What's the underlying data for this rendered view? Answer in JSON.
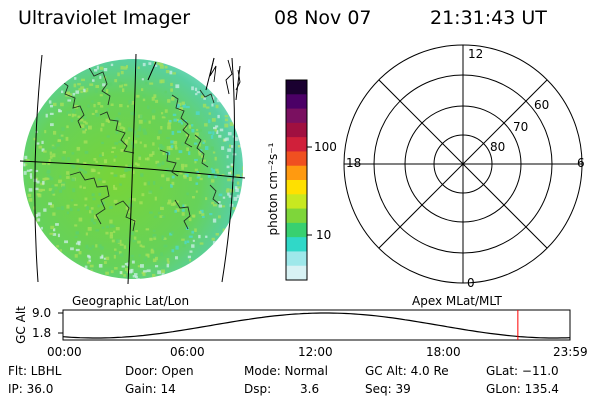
{
  "header": {
    "instrument": "Ultraviolet Imager",
    "date": "08 Nov 07",
    "time": "21:31:43 UT"
  },
  "geo_panel": {
    "label": "Geographic Lat/Lon",
    "colors": {
      "base": "#7ed63a",
      "speckle_a": "#5fd06a",
      "speckle_b": "#a8e05a",
      "cyan": "#4ed8d0",
      "pale": "#cdeee8"
    }
  },
  "colorbar": {
    "unit_label": "photon cm⁻²s⁻¹",
    "ticks": [
      "100",
      "10"
    ],
    "scale": "log",
    "colors": [
      "#1a0030",
      "#4b0066",
      "#7a1060",
      "#a01040",
      "#d0203a",
      "#f05020",
      "#ff9a10",
      "#ffe000",
      "#c8e820",
      "#7ed63a",
      "#38d070",
      "#30d8c8",
      "#9ee8ea",
      "#d8f2f4"
    ]
  },
  "polar_panel": {
    "label": "Apex MLat/MLT",
    "mlt_labels": {
      "top": "12",
      "right": "6",
      "bottom": "0",
      "left": "18"
    },
    "lat_labels": [
      "60",
      "70",
      "80"
    ]
  },
  "altitude_plot": {
    "ylabel": "GC Alt",
    "yticks": [
      "9.0",
      "1.8"
    ],
    "xticks": [
      "00:00",
      "06:00",
      "12:00",
      "18:00",
      "23:59"
    ],
    "marker_time": "21:31",
    "marker_color": "#ff0000"
  },
  "info": {
    "flt": "Flt: LBHL",
    "ip": "IP: 36.0",
    "door": "Door: Open",
    "gain": "Gain: 14",
    "mode": "Mode: Normal",
    "dsp_label": "Dsp:",
    "dsp_value": "3.6",
    "gc_alt": "GC Alt: 4.0 Re",
    "seq": "Seq: 39",
    "glat": "GLat: −11.0",
    "glon": "GLon: 135.4"
  }
}
